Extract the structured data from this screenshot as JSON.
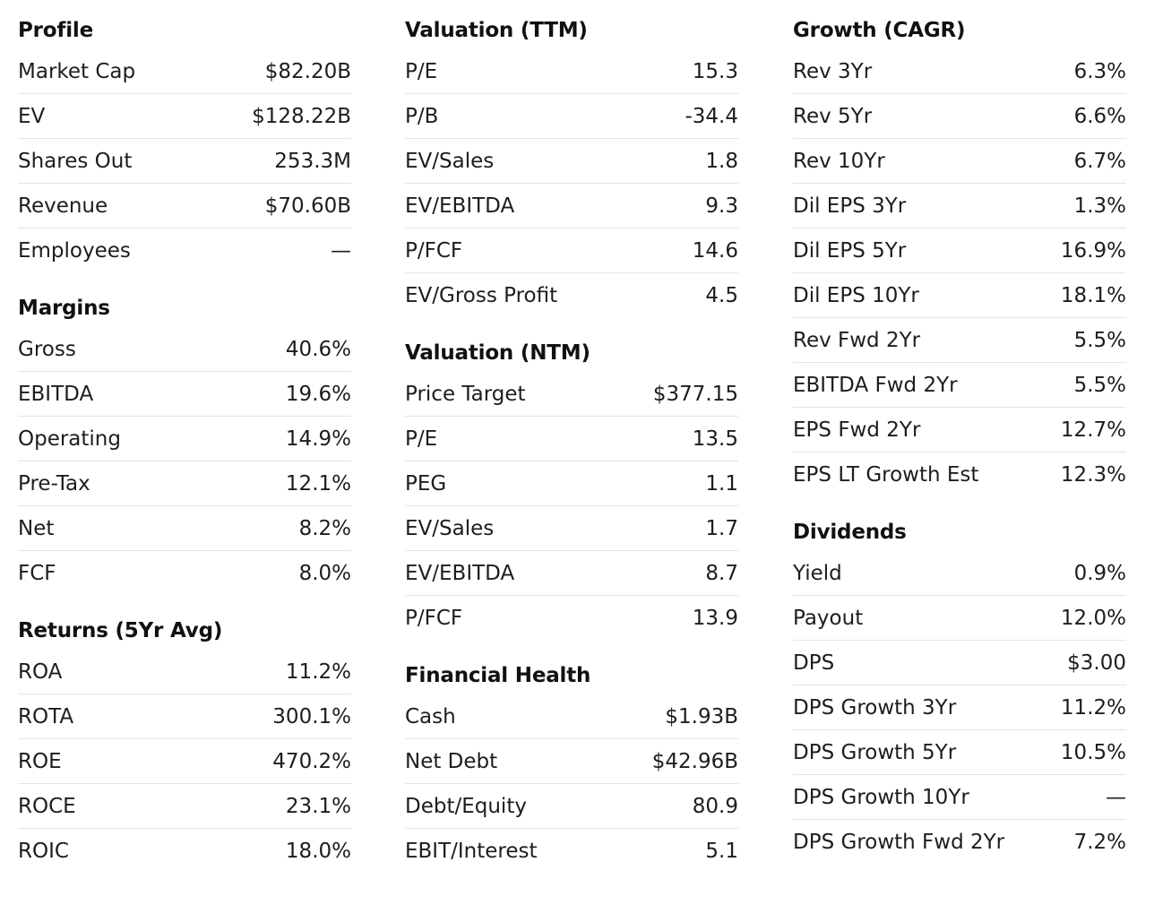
{
  "columns": [
    {
      "sections": [
        {
          "title": "Profile",
          "rows": [
            {
              "label": "Market Cap",
              "value": "$82.20B"
            },
            {
              "label": "EV",
              "value": "$128.22B"
            },
            {
              "label": "Shares Out",
              "value": "253.3M"
            },
            {
              "label": "Revenue",
              "value": "$70.60B"
            },
            {
              "label": "Employees",
              "value": "—"
            }
          ]
        },
        {
          "title": "Margins",
          "rows": [
            {
              "label": "Gross",
              "value": "40.6%"
            },
            {
              "label": "EBITDA",
              "value": "19.6%"
            },
            {
              "label": "Operating",
              "value": "14.9%"
            },
            {
              "label": "Pre-Tax",
              "value": "12.1%"
            },
            {
              "label": "Net",
              "value": "8.2%"
            },
            {
              "label": "FCF",
              "value": "8.0%"
            }
          ]
        },
        {
          "title": "Returns (5Yr Avg)",
          "rows": [
            {
              "label": "ROA",
              "value": "11.2%"
            },
            {
              "label": "ROTA",
              "value": "300.1%"
            },
            {
              "label": "ROE",
              "value": "470.2%"
            },
            {
              "label": "ROCE",
              "value": "23.1%"
            },
            {
              "label": "ROIC",
              "value": "18.0%"
            }
          ]
        }
      ]
    },
    {
      "sections": [
        {
          "title": "Valuation (TTM)",
          "rows": [
            {
              "label": "P/E",
              "value": "15.3"
            },
            {
              "label": "P/B",
              "value": "-34.4"
            },
            {
              "label": "EV/Sales",
              "value": "1.8"
            },
            {
              "label": "EV/EBITDA",
              "value": "9.3"
            },
            {
              "label": "P/FCF",
              "value": "14.6"
            },
            {
              "label": "EV/Gross Profit",
              "value": "4.5"
            }
          ]
        },
        {
          "title": "Valuation (NTM)",
          "rows": [
            {
              "label": "Price Target",
              "value": "$377.15"
            },
            {
              "label": "P/E",
              "value": "13.5"
            },
            {
              "label": "PEG",
              "value": "1.1"
            },
            {
              "label": "EV/Sales",
              "value": "1.7"
            },
            {
              "label": "EV/EBITDA",
              "value": "8.7"
            },
            {
              "label": "P/FCF",
              "value": "13.9"
            }
          ]
        },
        {
          "title": "Financial Health",
          "rows": [
            {
              "label": "Cash",
              "value": "$1.93B"
            },
            {
              "label": "Net Debt",
              "value": "$42.96B"
            },
            {
              "label": "Debt/Equity",
              "value": "80.9"
            },
            {
              "label": "EBIT/Interest",
              "value": "5.1"
            }
          ]
        }
      ]
    },
    {
      "sections": [
        {
          "title": "Growth (CAGR)",
          "rows": [
            {
              "label": "Rev 3Yr",
              "value": "6.3%"
            },
            {
              "label": "Rev 5Yr",
              "value": "6.6%"
            },
            {
              "label": "Rev 10Yr",
              "value": "6.7%"
            },
            {
              "label": "Dil EPS 3Yr",
              "value": "1.3%"
            },
            {
              "label": "Dil EPS 5Yr",
              "value": "16.9%"
            },
            {
              "label": "Dil EPS 10Yr",
              "value": "18.1%"
            },
            {
              "label": "Rev Fwd 2Yr",
              "value": "5.5%"
            },
            {
              "label": "EBITDA Fwd 2Yr",
              "value": "5.5%"
            },
            {
              "label": "EPS Fwd 2Yr",
              "value": "12.7%"
            },
            {
              "label": "EPS LT Growth Est",
              "value": "12.3%"
            }
          ]
        },
        {
          "title": "Dividends",
          "rows": [
            {
              "label": "Yield",
              "value": "0.9%"
            },
            {
              "label": "Payout",
              "value": "12.0%"
            },
            {
              "label": "DPS",
              "value": "$3.00"
            },
            {
              "label": "DPS Growth 3Yr",
              "value": "11.2%"
            },
            {
              "label": "DPS Growth 5Yr",
              "value": "10.5%"
            },
            {
              "label": "DPS Growth 10Yr",
              "value": "—"
            },
            {
              "label": "DPS Growth Fwd 2Yr",
              "value": "7.2%"
            }
          ]
        }
      ]
    }
  ]
}
